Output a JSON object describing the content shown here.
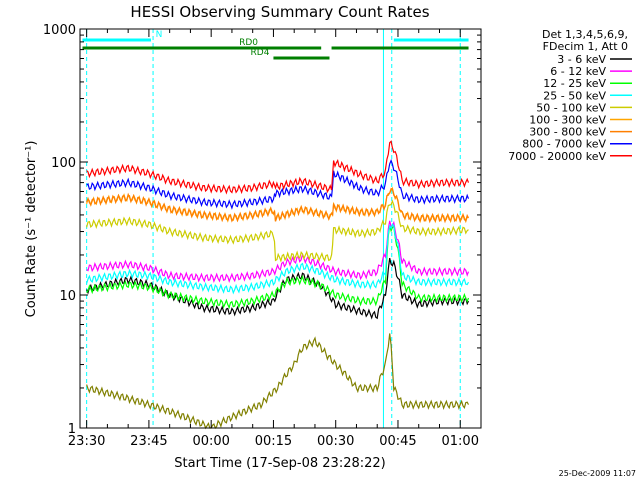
{
  "chart_data": {
    "type": "line",
    "title": "HESSI Observing Summary Count Rates",
    "xlabel": "Start Time (17-Sep-08 23:28:22)",
    "ylabel": "Count Rate (s⁻¹ detector⁻¹)",
    "yscale": "log",
    "ylim": [
      1,
      1000
    ],
    "xlim_minutes_from_2330": [
      -1.6,
      95
    ],
    "x_tick_labels": [
      "23:30",
      "23:45",
      "00:00",
      "00:15",
      "00:30",
      "00:45",
      "01:00"
    ],
    "x_tick_minutes_from_2330": [
      0,
      15,
      30,
      45,
      60,
      75,
      90
    ],
    "y_tick_labels": [
      "1",
      "10",
      "100",
      "1000"
    ],
    "y_tick_values": [
      1,
      10,
      100,
      1000
    ],
    "grid": false,
    "legend_position": "right",
    "legend_header": [
      "Det 1,3,4,5,6,9,",
      "FDecim 1, Att 0"
    ],
    "timestamp": "25-Dec-2009 11:07",
    "night_boundaries_minutes_from_2330": [
      0,
      16,
      73.5,
      90
    ],
    "saa_boundary_minutes_from_2330": 71.5,
    "flags": [
      {
        "label": "N",
        "color": "#00ffff",
        "segments": [
          [
            -1,
            15.5
          ],
          [
            74,
            92
          ]
        ]
      },
      {
        "label": "RD0",
        "color": "#007f00",
        "segments": [
          [
            -1,
            56.5
          ],
          [
            59,
            92
          ]
        ]
      },
      {
        "label": "RD4",
        "color": "#007f00",
        "segments": [
          [
            45,
            58.5
          ]
        ]
      }
    ],
    "series": [
      {
        "name": "3 - 6 keV",
        "color": "#000000",
        "x": [
          0,
          10,
          15,
          20,
          28,
          35,
          40,
          45,
          48,
          52,
          56,
          60,
          66,
          70,
          72,
          73,
          74,
          76,
          80,
          85,
          92
        ],
        "values": [
          11,
          13,
          12,
          10,
          8,
          7.5,
          8,
          9,
          13,
          14,
          12,
          8.5,
          7.5,
          7,
          10,
          18,
          17,
          10,
          8.5,
          9,
          9
        ]
      },
      {
        "name": "6 - 12 keV",
        "color": "#ff00ff",
        "x": [
          0,
          10,
          15,
          20,
          28,
          35,
          40,
          45,
          48,
          52,
          56,
          60,
          66,
          70,
          72,
          73,
          74,
          76,
          80,
          85,
          92
        ],
        "values": [
          16,
          17,
          16,
          14,
          13.5,
          13.5,
          14,
          15,
          17.5,
          19,
          17,
          15,
          14,
          15,
          20,
          35,
          33,
          18,
          15,
          15,
          15
        ]
      },
      {
        "name": "12 - 25 keV",
        "color": "#00ff00",
        "x": [
          0,
          10,
          15,
          20,
          28,
          35,
          40,
          45,
          48,
          52,
          56,
          60,
          66,
          70,
          72,
          73,
          74,
          76,
          80,
          85,
          92
        ],
        "values": [
          11,
          12,
          11.5,
          10,
          9,
          8.5,
          9,
          10,
          12.5,
          13,
          12,
          10,
          9,
          9,
          13,
          33,
          31,
          12,
          9.5,
          9.5,
          9.5
        ]
      },
      {
        "name": "25 - 50 keV",
        "color": "#00ffff",
        "x": [
          0,
          10,
          15,
          20,
          28,
          35,
          40,
          45,
          48,
          52,
          56,
          60,
          66,
          70,
          72,
          73,
          74,
          76,
          80,
          85,
          92
        ],
        "values": [
          13,
          14.5,
          14,
          12.5,
          11.5,
          11,
          11.5,
          12.5,
          15,
          16.5,
          15,
          13,
          12,
          12,
          15,
          34,
          32,
          14,
          12.5,
          12.5,
          12.5
        ]
      },
      {
        "name": "50 - 100 keV",
        "color": "#cccc00",
        "x": [
          0,
          10,
          15,
          20,
          28,
          35,
          40,
          45,
          45.5,
          52,
          59,
          59.5,
          66,
          70,
          72,
          73,
          74,
          76,
          80,
          85,
          92
        ],
        "values": [
          34,
          36,
          34,
          30,
          27,
          26,
          27,
          29,
          19,
          20,
          19,
          31,
          29,
          30,
          36,
          50,
          47,
          32,
          30,
          30,
          31
        ]
      },
      {
        "name": "100 - 300 keV",
        "color": "#ffa500",
        "x": [
          0,
          10,
          15,
          20,
          28,
          35,
          40,
          45,
          45.5,
          52,
          59,
          59.5,
          66,
          70,
          72,
          73,
          74,
          76,
          80,
          85,
          92
        ],
        "values": [
          50,
          54,
          50,
          44,
          40,
          38,
          40,
          43,
          38,
          44,
          39,
          46,
          42,
          42,
          48,
          62,
          59,
          40,
          38,
          38,
          38
        ]
      },
      {
        "name": "300 - 800 keV",
        "color": "#ff7f00",
        "x": [
          0,
          10,
          15,
          20,
          28,
          35,
          40,
          45,
          45.5,
          52,
          59,
          59.5,
          66,
          70,
          72,
          73,
          74,
          76,
          80,
          85,
          92
        ],
        "values": [
          50,
          54,
          50,
          44,
          40,
          38,
          40,
          43,
          38,
          44,
          39,
          46,
          42,
          42,
          48,
          62,
          59,
          40,
          38,
          38,
          38
        ]
      },
      {
        "name": "800 - 7000 keV",
        "color": "#0000ff",
        "x": [
          0,
          10,
          15,
          20,
          28,
          35,
          40,
          45,
          45.5,
          52,
          59,
          59.5,
          66,
          70,
          72,
          73,
          74,
          76,
          80,
          85,
          92
        ],
        "values": [
          65,
          70,
          64,
          56,
          50,
          48,
          50,
          53,
          58,
          63,
          54,
          82,
          63,
          58,
          68,
          100,
          92,
          56,
          52,
          53,
          53
        ]
      },
      {
        "name": "7000 - 20000 keV",
        "color": "#ff0000",
        "x": [
          0,
          10,
          15,
          20,
          28,
          35,
          40,
          45,
          45.5,
          52,
          59,
          59.5,
          66,
          70,
          72,
          73,
          74,
          76,
          80,
          85,
          92
        ],
        "values": [
          82,
          90,
          82,
          72,
          64,
          62,
          64,
          69,
          65,
          72,
          62,
          100,
          80,
          72,
          84,
          140,
          125,
          72,
          68,
          70,
          70
        ]
      },
      {
        "name": "",
        "color": "#808000",
        "x": [
          0,
          15,
          30,
          42,
          46,
          50,
          52,
          55,
          58,
          60,
          65,
          70,
          72,
          73,
          74,
          76,
          85,
          92
        ],
        "values": [
          2,
          1.5,
          1,
          1.5,
          2,
          3,
          4,
          4.5,
          3.5,
          3,
          2,
          2,
          3,
          5,
          2,
          1.5,
          1.5,
          1.5
        ]
      }
    ]
  }
}
